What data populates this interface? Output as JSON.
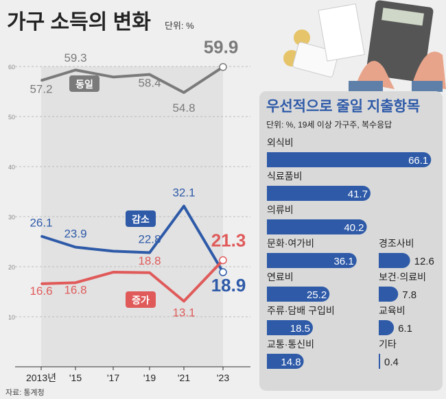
{
  "header": {
    "title": "가구 소득의 변화",
    "unit": "단위: %"
  },
  "source": "자료: 통계청",
  "colors": {
    "same": "#7a7a7a",
    "decrease": "#2e5aa8",
    "increase": "#e05a5a",
    "bar": "#2e5aa8",
    "panel": "#d9d9d9",
    "band": "#e2e2e2"
  },
  "chart_data": [
    {
      "type": "line",
      "categories": [
        "2013년",
        "'15",
        "'17",
        "'19",
        "'21",
        "'23"
      ],
      "ylim": [
        0,
        60
      ],
      "yticks": [
        "10",
        "20",
        "30",
        "40",
        "50",
        "60"
      ],
      "grid": true,
      "series": [
        {
          "name": "동일",
          "values": [
            57.2,
            59.3,
            57.9,
            58.4,
            54.8,
            59.9
          ],
          "labels": [
            "57.2",
            "59.3",
            "",
            "58.4",
            "54.8",
            "59.9"
          ]
        },
        {
          "name": "감소",
          "values": [
            26.1,
            23.9,
            23.1,
            22.8,
            32.1,
            18.9
          ],
          "labels": [
            "26.1",
            "23.9",
            "",
            "22.8",
            "32.1",
            "18.9"
          ]
        },
        {
          "name": "증가",
          "values": [
            16.6,
            16.8,
            18.9,
            18.8,
            13.1,
            21.3
          ],
          "labels": [
            "16.6",
            "16.8",
            "",
            "18.8",
            "13.1",
            "21.3"
          ]
        }
      ]
    },
    {
      "type": "bar",
      "title": "우선적으로 줄일 지출항목",
      "subtitle": "단위: %, 19세 이상 가구주, 복수응답",
      "categories": [
        "외식비",
        "식료품비",
        "의류비",
        "문화·여가비",
        "연료비",
        "주류·담배 구입비",
        "교통·통신비",
        "경조사비",
        "보건·의료비",
        "교육비",
        "기타"
      ],
      "values": [
        66.1,
        41.7,
        40.2,
        36.1,
        25.2,
        18.5,
        14.8,
        12.6,
        7.8,
        6.1,
        0.4
      ],
      "labels": [
        "66.1",
        "41.7",
        "40.2",
        "36.1",
        "25.2",
        "18.5",
        "14.8",
        "12.6",
        "7.8",
        "6.1",
        "0.4"
      ]
    }
  ]
}
